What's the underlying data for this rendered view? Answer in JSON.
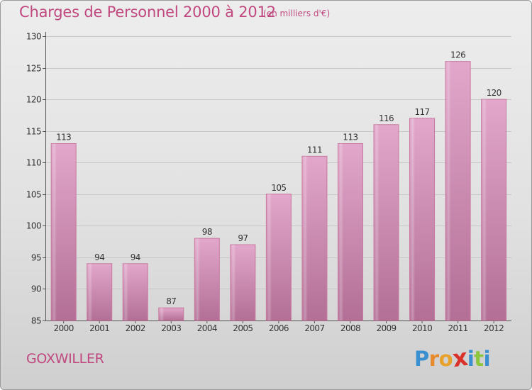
{
  "header": {
    "title": "Charges de Personnel 2000 à 2012",
    "subtitle": "(en milliers d'€)"
  },
  "footer": {
    "location": "GOXWILLER",
    "logo": "Proxiti"
  },
  "colors": {
    "title": "#c0487f",
    "bar_top": "#e2a7cb",
    "bar_bottom": "#b36f96",
    "bar_edge": "#c8789f",
    "logo_letters": [
      "#3a8fd0",
      "#e88a2b",
      "#e8a12b",
      "#d8322b",
      "#3a8fd0",
      "#8cc63e",
      "#3a8fd0"
    ]
  },
  "chart_data": {
    "type": "bar",
    "title": "Charges de Personnel 2000 à 2012",
    "subtitle": "(en milliers d'€)",
    "categories": [
      "2000",
      "2001",
      "2002",
      "2003",
      "2004",
      "2005",
      "2006",
      "2007",
      "2008",
      "2009",
      "2010",
      "2011",
      "2012"
    ],
    "values": [
      113,
      94,
      94,
      87,
      98,
      97,
      105,
      111,
      113,
      116,
      117,
      126,
      120
    ],
    "ylim": [
      85,
      130
    ],
    "yticks": [
      85,
      90,
      95,
      100,
      105,
      110,
      115,
      120,
      125,
      130
    ],
    "grid": true,
    "data_labels": true
  }
}
